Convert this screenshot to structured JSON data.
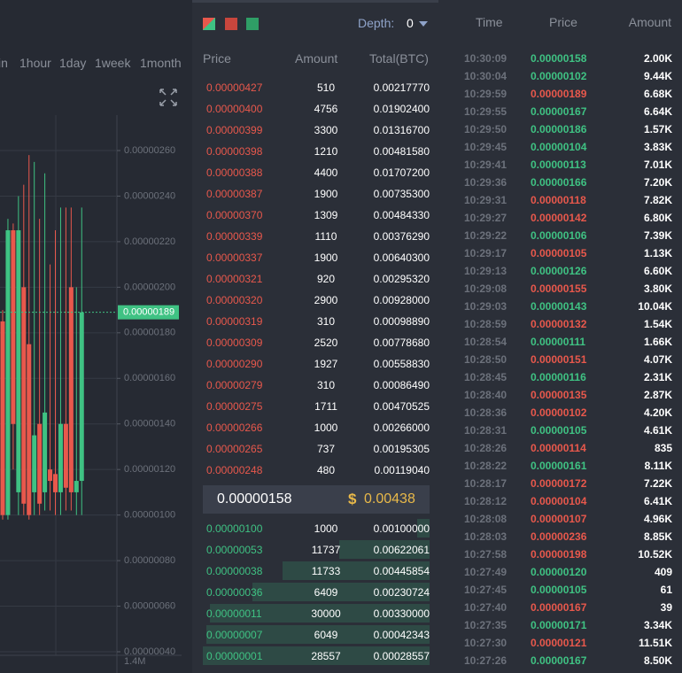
{
  "chart": {
    "tabs": [
      "in",
      "1hour",
      "1day",
      "1week",
      "1month"
    ],
    "ylim": [
      4e-07,
      2.6e-06
    ],
    "yticks": [
      {
        "value": 2.6e-06,
        "label": "0.00000260"
      },
      {
        "value": 2.4e-06,
        "label": "0.00000240"
      },
      {
        "value": 2.2e-06,
        "label": "0.00000220"
      },
      {
        "value": 2e-06,
        "label": "0.00000200"
      },
      {
        "value": 1.8e-06,
        "label": "0.00000180"
      },
      {
        "value": 1.6e-06,
        "label": "0.00000160"
      },
      {
        "value": 1.4e-06,
        "label": "0.00000140"
      },
      {
        "value": 1.2e-06,
        "label": "0.00000120"
      },
      {
        "value": 1e-06,
        "label": "0.00000100"
      },
      {
        "value": 8e-07,
        "label": "0.00000080"
      },
      {
        "value": 6e-07,
        "label": "0.00000060"
      },
      {
        "value": 4e-07,
        "label": "0.00000040"
      }
    ],
    "last_price": {
      "value": 1.89e-06,
      "label": "0.00000189"
    },
    "volume_label": "1.4M",
    "candles": [
      {
        "open": 1.85e-06,
        "high": 1.9e-06,
        "low": 9.8e-07,
        "close": 1e-06
      },
      {
        "open": 1e-06,
        "high": 2.3e-06,
        "low": 9.8e-07,
        "close": 2.25e-06
      },
      {
        "open": 2.25e-06,
        "high": 2.28e-06,
        "low": 1.2e-06,
        "close": 1.4e-06
      },
      {
        "open": 1.1e-06,
        "high": 2.4e-06,
        "low": 1e-06,
        "close": 2.25e-06
      },
      {
        "open": 2e-06,
        "high": 2.45e-06,
        "low": 1e-06,
        "close": 1.05e-06
      },
      {
        "open": 1.75e-06,
        "high": 2.58e-06,
        "low": 9.8e-07,
        "close": 1e-06
      },
      {
        "open": 1.1e-06,
        "high": 2.55e-06,
        "low": 1e-06,
        "close": 1.35e-06
      },
      {
        "open": 1.4e-06,
        "high": 2.3e-06,
        "low": 1e-06,
        "close": 1.05e-06
      },
      {
        "open": 1.1e-06,
        "high": 2.5e-06,
        "low": 1.02e-06,
        "close": 1.45e-06
      },
      {
        "open": 1.2e-06,
        "high": 2.1e-06,
        "low": 1.02e-06,
        "close": 1.15e-06
      },
      {
        "open": 1.18e-06,
        "high": 2.25e-06,
        "low": 1e-06,
        "close": 1.1e-06
      },
      {
        "open": 1.1e-06,
        "high": 2.35e-06,
        "low": 1e-06,
        "close": 1.4e-06
      },
      {
        "open": 1.4e-06,
        "high": 2.35e-06,
        "low": 1.02e-06,
        "close": 1.12e-06
      },
      {
        "open": 2e-06,
        "high": 2.35e-06,
        "low": 1.02e-06,
        "close": 1.1e-06
      },
      {
        "open": 1.1e-06,
        "high": 2e-06,
        "low": 1e-06,
        "close": 1.15e-06
      },
      {
        "open": 1.15e-06,
        "high": 2.35e-06,
        "low": 1e-06,
        "close": 1.89e-06
      }
    ]
  },
  "orderbook": {
    "depth_label": "Depth:",
    "depth_value": "0",
    "headers": [
      "Price",
      "Amount",
      "Total(BTC)"
    ],
    "asks": [
      [
        "0.00000427",
        "510",
        "0.00217770"
      ],
      [
        "0.00000400",
        "4756",
        "0.01902400"
      ],
      [
        "0.00000399",
        "3300",
        "0.01316700"
      ],
      [
        "0.00000398",
        "1210",
        "0.00481580"
      ],
      [
        "0.00000388",
        "4400",
        "0.01707200"
      ],
      [
        "0.00000387",
        "1900",
        "0.00735300"
      ],
      [
        "0.00000370",
        "1309",
        "0.00484330"
      ],
      [
        "0.00000339",
        "1110",
        "0.00376290"
      ],
      [
        "0.00000337",
        "1900",
        "0.00640300"
      ],
      [
        "0.00000321",
        "920",
        "0.00295320"
      ],
      [
        "0.00000320",
        "2900",
        "0.00928000"
      ],
      [
        "0.00000319",
        "310",
        "0.00098890"
      ],
      [
        "0.00000309",
        "2520",
        "0.00778680"
      ],
      [
        "0.00000290",
        "1927",
        "0.00558830"
      ],
      [
        "0.00000279",
        "310",
        "0.00086490"
      ],
      [
        "0.00000275",
        "1711",
        "0.00470525"
      ],
      [
        "0.00000266",
        "1000",
        "0.00266000"
      ],
      [
        "0.00000265",
        "737",
        "0.00195305"
      ],
      [
        "0.00000248",
        "480",
        "0.00119040"
      ]
    ],
    "mid_price": "0.00000158",
    "mid_currency": "$",
    "mid_value": "0.00438",
    "bids": [
      [
        "0.00000100",
        "1000",
        "0.00100000"
      ],
      [
        "0.00000053",
        "11737",
        "0.00622061"
      ],
      [
        "0.00000038",
        "11733",
        "0.00445854"
      ],
      [
        "0.00000036",
        "6409",
        "0.00230724"
      ],
      [
        "0.00000011",
        "30000",
        "0.00330000"
      ],
      [
        "0.00000007",
        "6049",
        "0.00042343"
      ],
      [
        "0.00000001",
        "28557",
        "0.00028557"
      ]
    ]
  },
  "trades": {
    "headers": [
      "Time",
      "Price",
      "Amount"
    ],
    "rows": [
      {
        "time": "10:30:09",
        "price": "0.00000158",
        "amount": "2.00K",
        "side": "buy"
      },
      {
        "time": "10:30:04",
        "price": "0.00000102",
        "amount": "9.44K",
        "side": "buy"
      },
      {
        "time": "10:29:59",
        "price": "0.00000189",
        "amount": "6.68K",
        "side": "sell"
      },
      {
        "time": "10:29:55",
        "price": "0.00000167",
        "amount": "6.64K",
        "side": "buy"
      },
      {
        "time": "10:29:50",
        "price": "0.00000186",
        "amount": "1.57K",
        "side": "buy"
      },
      {
        "time": "10:29:45",
        "price": "0.00000104",
        "amount": "3.83K",
        "side": "buy"
      },
      {
        "time": "10:29:41",
        "price": "0.00000113",
        "amount": "7.01K",
        "side": "buy"
      },
      {
        "time": "10:29:36",
        "price": "0.00000166",
        "amount": "7.20K",
        "side": "buy"
      },
      {
        "time": "10:29:31",
        "price": "0.00000118",
        "amount": "7.82K",
        "side": "sell"
      },
      {
        "time": "10:29:27",
        "price": "0.00000142",
        "amount": "6.80K",
        "side": "sell"
      },
      {
        "time": "10:29:22",
        "price": "0.00000106",
        "amount": "7.39K",
        "side": "buy"
      },
      {
        "time": "10:29:17",
        "price": "0.00000105",
        "amount": "1.13K",
        "side": "sell"
      },
      {
        "time": "10:29:13",
        "price": "0.00000126",
        "amount": "6.60K",
        "side": "buy"
      },
      {
        "time": "10:29:08",
        "price": "0.00000155",
        "amount": "3.80K",
        "side": "sell"
      },
      {
        "time": "10:29:03",
        "price": "0.00000143",
        "amount": "10.04K",
        "side": "buy"
      },
      {
        "time": "10:28:59",
        "price": "0.00000132",
        "amount": "1.54K",
        "side": "sell"
      },
      {
        "time": "10:28:54",
        "price": "0.00000111",
        "amount": "1.66K",
        "side": "buy"
      },
      {
        "time": "10:28:50",
        "price": "0.00000151",
        "amount": "4.07K",
        "side": "sell"
      },
      {
        "time": "10:28:45",
        "price": "0.00000116",
        "amount": "2.31K",
        "side": "buy"
      },
      {
        "time": "10:28:40",
        "price": "0.00000135",
        "amount": "2.87K",
        "side": "sell"
      },
      {
        "time": "10:28:36",
        "price": "0.00000102",
        "amount": "4.20K",
        "side": "sell"
      },
      {
        "time": "10:28:31",
        "price": "0.00000105",
        "amount": "4.61K",
        "side": "buy"
      },
      {
        "time": "10:28:26",
        "price": "0.00000114",
        "amount": "835",
        "side": "sell"
      },
      {
        "time": "10:28:22",
        "price": "0.00000161",
        "amount": "8.11K",
        "side": "buy"
      },
      {
        "time": "10:28:17",
        "price": "0.00000172",
        "amount": "7.22K",
        "side": "sell"
      },
      {
        "time": "10:28:12",
        "price": "0.00000104",
        "amount": "6.41K",
        "side": "sell"
      },
      {
        "time": "10:28:08",
        "price": "0.00000107",
        "amount": "4.96K",
        "side": "sell"
      },
      {
        "time": "10:28:03",
        "price": "0.00000236",
        "amount": "8.85K",
        "side": "sell"
      },
      {
        "time": "10:27:58",
        "price": "0.00000198",
        "amount": "10.52K",
        "side": "sell"
      },
      {
        "time": "10:27:49",
        "price": "0.00000120",
        "amount": "409",
        "side": "buy"
      },
      {
        "time": "10:27:45",
        "price": "0.00000105",
        "amount": "61",
        "side": "buy"
      },
      {
        "time": "10:27:40",
        "price": "0.00000167",
        "amount": "39",
        "side": "sell"
      },
      {
        "time": "10:27:35",
        "price": "0.00000171",
        "amount": "3.34K",
        "side": "buy"
      },
      {
        "time": "10:27:30",
        "price": "0.00000121",
        "amount": "11.51K",
        "side": "sell"
      },
      {
        "time": "10:27:26",
        "price": "0.00000167",
        "amount": "8.50K",
        "side": "buy"
      }
    ]
  }
}
